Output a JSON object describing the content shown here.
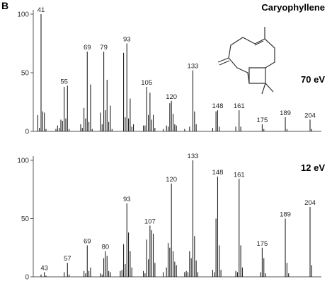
{
  "panel_label": "B",
  "compound": "Caryophyllene",
  "chart_data": [
    {
      "type": "bar",
      "energy_label": "70 eV",
      "ylim": [
        0,
        100
      ],
      "xlim": [
        38,
        210
      ],
      "y_ticks": [
        "0",
        "50",
        "100"
      ],
      "peaks": [
        [
          39,
          14
        ],
        [
          40,
          3
        ],
        [
          41,
          100
        ],
        [
          42,
          17
        ],
        [
          43,
          16
        ],
        [
          44,
          2
        ],
        [
          50,
          2
        ],
        [
          51,
          5
        ],
        [
          52,
          3
        ],
        [
          53,
          10
        ],
        [
          54,
          9
        ],
        [
          55,
          38
        ],
        [
          56,
          11
        ],
        [
          57,
          39
        ],
        [
          58,
          2
        ],
        [
          65,
          6
        ],
        [
          66,
          3
        ],
        [
          67,
          20
        ],
        [
          68,
          11
        ],
        [
          69,
          68
        ],
        [
          70,
          8
        ],
        [
          71,
          40
        ],
        [
          72,
          2
        ],
        [
          77,
          16
        ],
        [
          78,
          6
        ],
        [
          79,
          68
        ],
        [
          80,
          18
        ],
        [
          81,
          44
        ],
        [
          82,
          8
        ],
        [
          83,
          22
        ],
        [
          84,
          2
        ],
        [
          91,
          67
        ],
        [
          92,
          12
        ],
        [
          93,
          75
        ],
        [
          94,
          11
        ],
        [
          95,
          28
        ],
        [
          96,
          4
        ],
        [
          97,
          6
        ],
        [
          103,
          5
        ],
        [
          104,
          5
        ],
        [
          105,
          38
        ],
        [
          106,
          14
        ],
        [
          107,
          33
        ],
        [
          108,
          10
        ],
        [
          109,
          14
        ],
        [
          110,
          3
        ],
        [
          115,
          2
        ],
        [
          117,
          5
        ],
        [
          118,
          4
        ],
        [
          119,
          24
        ],
        [
          120,
          26
        ],
        [
          121,
          15
        ],
        [
          122,
          6
        ],
        [
          123,
          5
        ],
        [
          128,
          2
        ],
        [
          131,
          4
        ],
        [
          133,
          52
        ],
        [
          134,
          17
        ],
        [
          135,
          6
        ],
        [
          145,
          3
        ],
        [
          147,
          17
        ],
        [
          148,
          18
        ],
        [
          149,
          4
        ],
        [
          159,
          4
        ],
        [
          161,
          18
        ],
        [
          162,
          4
        ],
        [
          175,
          6
        ],
        [
          176,
          2
        ],
        [
          189,
          12
        ],
        [
          190,
          2
        ],
        [
          204,
          10
        ],
        [
          205,
          2
        ]
      ],
      "labels": [
        {
          "mz": 41,
          "text": "41",
          "y": 100
        },
        {
          "mz": 55,
          "text": "55",
          "y": 39
        },
        {
          "mz": 69,
          "text": "69",
          "y": 68
        },
        {
          "mz": 79,
          "text": "79",
          "y": 68
        },
        {
          "mz": 93,
          "text": "93",
          "y": 75
        },
        {
          "mz": 105,
          "text": "105",
          "y": 38
        },
        {
          "mz": 120,
          "text": "120",
          "y": 26
        },
        {
          "mz": 133,
          "text": "133",
          "y": 52
        },
        {
          "mz": 148,
          "text": "148",
          "y": 18
        },
        {
          "mz": 161,
          "text": "161",
          "y": 18
        },
        {
          "mz": 175,
          "text": "175",
          "y": 6
        },
        {
          "mz": 189,
          "text": "189",
          "y": 12
        },
        {
          "mz": 204,
          "text": "204",
          "y": 10
        }
      ]
    },
    {
      "type": "bar",
      "energy_label": "12 eV",
      "ylim": [
        0,
        100
      ],
      "xlim": [
        38,
        210
      ],
      "y_ticks": [
        "0",
        "50",
        "100"
      ],
      "peaks": [
        [
          41,
          2
        ],
        [
          43,
          4
        ],
        [
          44,
          1
        ],
        [
          55,
          4
        ],
        [
          57,
          12
        ],
        [
          58,
          2
        ],
        [
          67,
          5
        ],
        [
          68,
          3
        ],
        [
          69,
          27
        ],
        [
          70,
          5
        ],
        [
          71,
          8
        ],
        [
          77,
          3
        ],
        [
          78,
          2
        ],
        [
          79,
          16
        ],
        [
          80,
          22
        ],
        [
          81,
          18
        ],
        [
          82,
          5
        ],
        [
          83,
          4
        ],
        [
          89,
          5
        ],
        [
          90,
          6
        ],
        [
          91,
          28
        ],
        [
          92,
          11
        ],
        [
          93,
          63
        ],
        [
          94,
          38
        ],
        [
          95,
          22
        ],
        [
          96,
          8
        ],
        [
          103,
          5
        ],
        [
          104,
          3
        ],
        [
          105,
          32
        ],
        [
          106,
          15
        ],
        [
          107,
          44
        ],
        [
          108,
          40
        ],
        [
          109,
          37
        ],
        [
          110,
          12
        ],
        [
          115,
          4
        ],
        [
          117,
          8
        ],
        [
          118,
          29
        ],
        [
          119,
          25
        ],
        [
          120,
          80
        ],
        [
          121,
          22
        ],
        [
          122,
          13
        ],
        [
          123,
          10
        ],
        [
          128,
          4
        ],
        [
          129,
          5
        ],
        [
          130,
          4
        ],
        [
          131,
          22
        ],
        [
          132,
          16
        ],
        [
          133,
          100
        ],
        [
          134,
          35
        ],
        [
          135,
          14
        ],
        [
          136,
          4
        ],
        [
          145,
          6
        ],
        [
          146,
          4
        ],
        [
          147,
          50
        ],
        [
          148,
          86
        ],
        [
          149,
          27
        ],
        [
          150,
          6
        ],
        [
          159,
          5
        ],
        [
          160,
          4
        ],
        [
          161,
          84
        ],
        [
          162,
          27
        ],
        [
          163,
          8
        ],
        [
          174,
          4
        ],
        [
          175,
          25
        ],
        [
          176,
          16
        ],
        [
          177,
          3
        ],
        [
          189,
          50
        ],
        [
          190,
          12
        ],
        [
          191,
          3
        ],
        [
          204,
          60
        ],
        [
          205,
          10
        ]
      ],
      "labels": [
        {
          "mz": 43,
          "text": "43",
          "y": 4
        },
        {
          "mz": 57,
          "text": "57",
          "y": 12
        },
        {
          "mz": 69,
          "text": "69",
          "y": 27
        },
        {
          "mz": 80,
          "text": "80",
          "y": 22
        },
        {
          "mz": 93,
          "text": "93",
          "y": 63
        },
        {
          "mz": 107,
          "text": "107",
          "y": 44
        },
        {
          "mz": 120,
          "text": "120",
          "y": 80
        },
        {
          "mz": 133,
          "text": "133",
          "y": 100
        },
        {
          "mz": 148,
          "text": "148",
          "y": 86
        },
        {
          "mz": 161,
          "text": "161",
          "y": 84
        },
        {
          "mz": 175,
          "text": "175",
          "y": 25
        },
        {
          "mz": 189,
          "text": "189",
          "y": 50
        },
        {
          "mz": 204,
          "text": "204",
          "y": 60
        }
      ]
    }
  ]
}
